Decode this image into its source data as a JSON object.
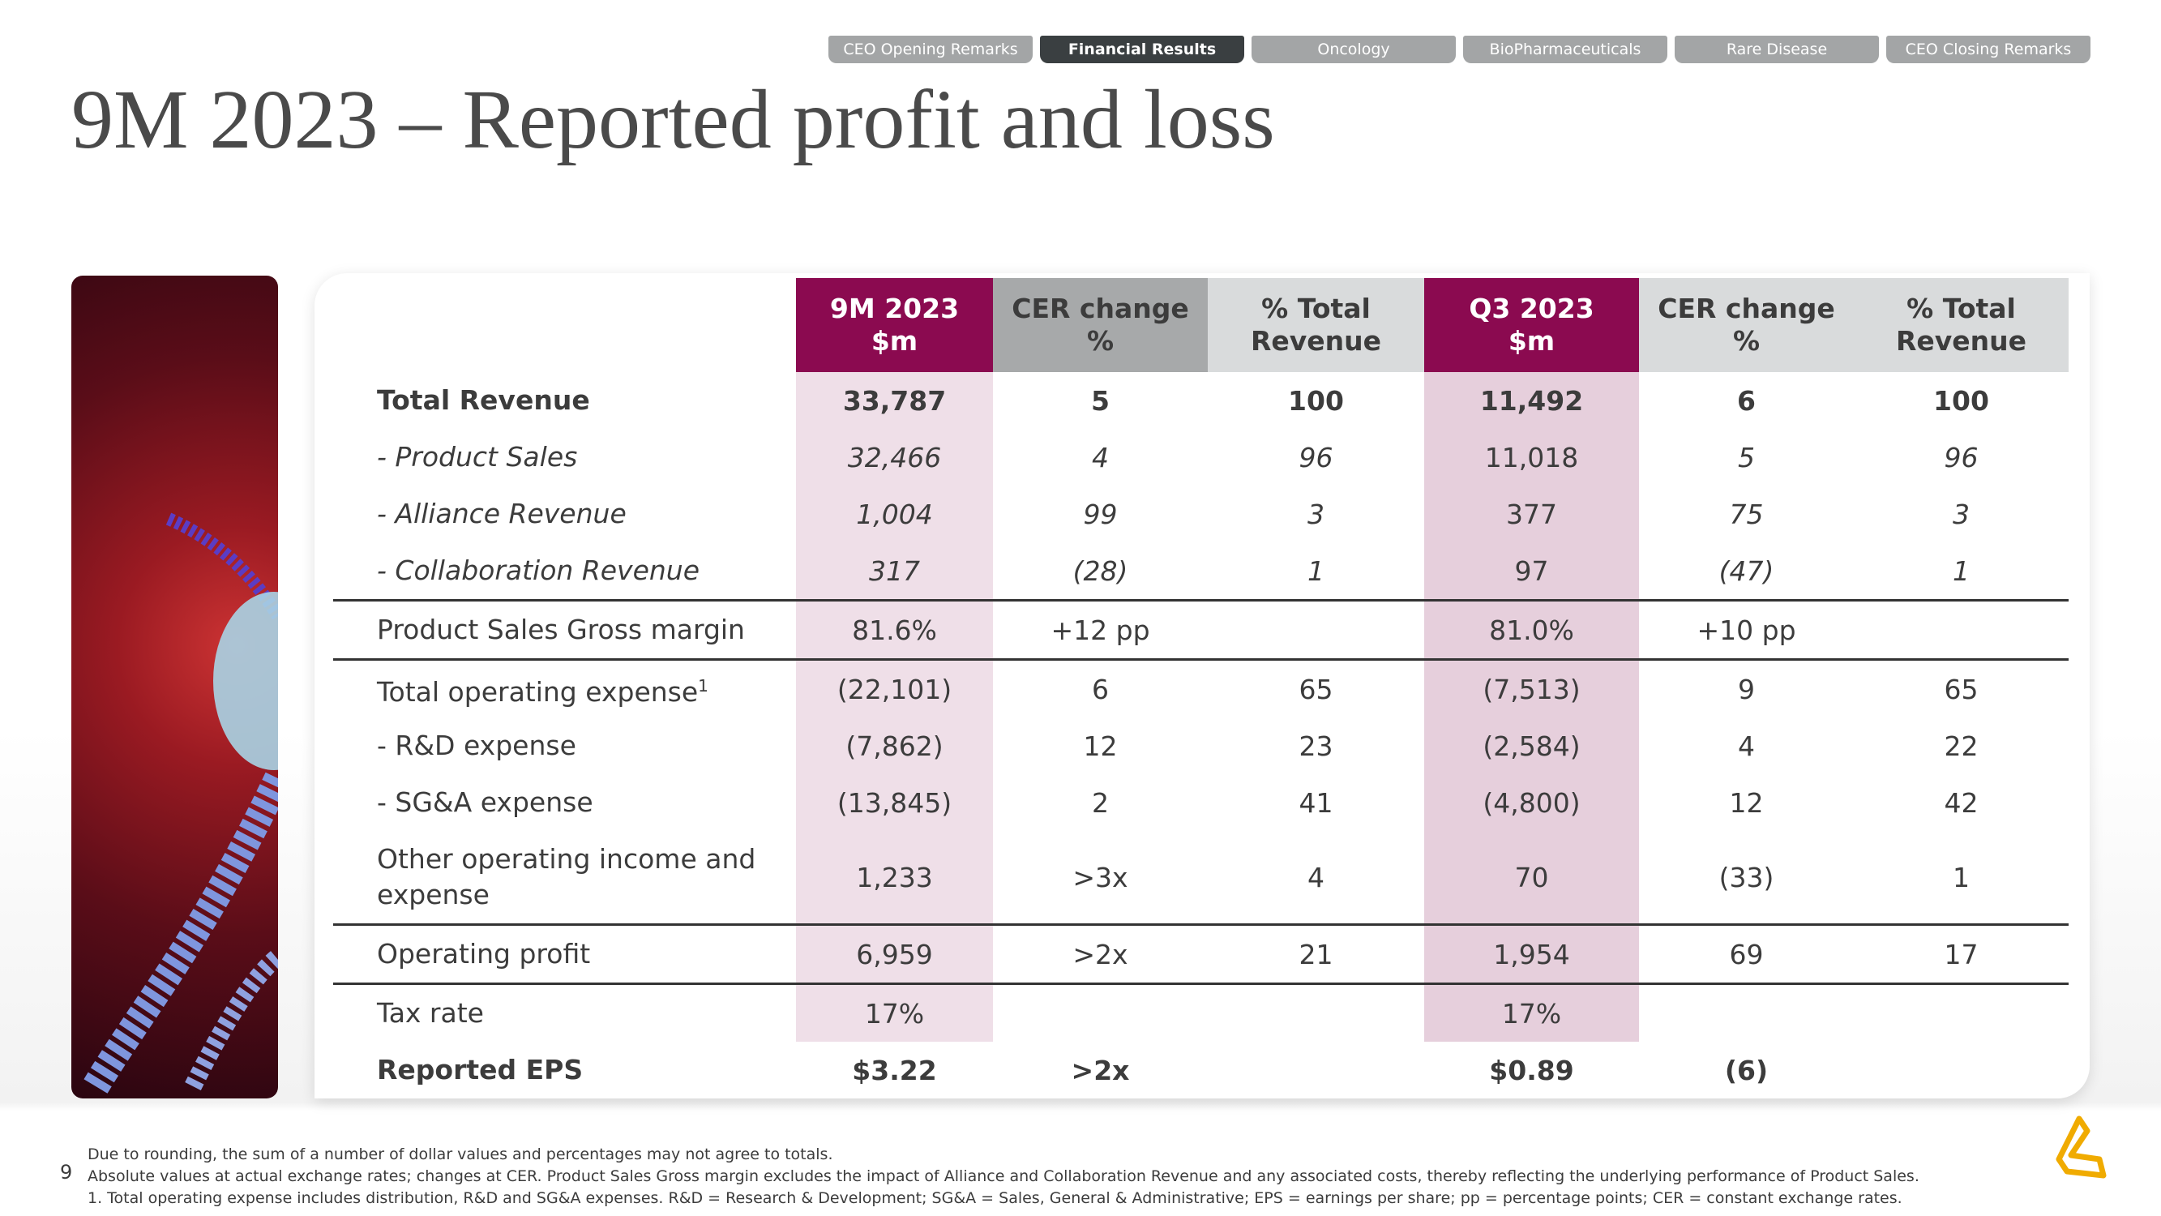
{
  "tabs": [
    "CEO Opening Remarks",
    "Financial Results",
    "Oncology",
    "BioPharmaceuticals",
    "Rare Disease",
    "CEO Closing Remarks"
  ],
  "title": "9M 2023 – Reported profit and loss",
  "table": {
    "header": [
      [
        "9M 2023",
        "$m"
      ],
      [
        "CER change",
        "%"
      ],
      [
        "% Total",
        "Revenue"
      ],
      [
        "Q3 2023",
        "$m"
      ],
      [
        "CER change",
        "%"
      ],
      [
        "% Total",
        "Revenue"
      ]
    ],
    "rows": [
      {
        "label": "Total Revenue",
        "cells": [
          "33,787",
          "5",
          "100",
          "11,492",
          "6",
          "100"
        ]
      },
      {
        "label": "- Product Sales",
        "cells": [
          "32,466",
          "4",
          "96",
          "11,018",
          "5",
          "96"
        ]
      },
      {
        "label": "- Alliance Revenue",
        "cells": [
          "1,004",
          "99",
          "3",
          "377",
          "75",
          "3"
        ]
      },
      {
        "label": "- Collaboration Revenue",
        "cells": [
          "317",
          "(28)",
          "1",
          "97",
          "(47)",
          "1"
        ]
      },
      {
        "label": "Product Sales Gross margin",
        "cells": [
          "81.6%",
          "+12 pp",
          null,
          "81.0%",
          "+10 pp",
          null
        ]
      },
      {
        "label": "Total operating expense",
        "note": "1",
        "cells": [
          "(22,101)",
          "6",
          "65",
          "(7,513)",
          "9",
          "65"
        ]
      },
      {
        "label": "- R&D expense",
        "cells": [
          "(7,862)",
          "12",
          "23",
          "(2,584)",
          "4",
          "22"
        ]
      },
      {
        "label": "- SG&A expense",
        "cells": [
          "(13,845)",
          "2",
          "41",
          "(4,800)",
          "12",
          "42"
        ]
      },
      {
        "label": "Other operating income and expense",
        "cells": [
          "1,233",
          ">3x",
          "4",
          "70",
          "(33)",
          "1"
        ]
      },
      {
        "label": "Operating profit",
        "cells": [
          "6,959",
          ">2x",
          "21",
          "1,954",
          "69",
          "17"
        ]
      },
      {
        "label": "Tax rate",
        "cells": [
          "17%",
          null,
          null,
          "17%",
          null,
          null
        ]
      },
      {
        "label": "Reported EPS",
        "cells": [
          "$3.22",
          ">2x",
          null,
          "$0.89",
          "(6)",
          null
        ]
      }
    ]
  },
  "page_number": "9",
  "footnotes": [
    "Due to rounding, the sum of a number of dollar values and percentages may not agree to totals.",
    "Absolute values at actual exchange rates; changes at CER. Product Sales Gross margin excludes the impact of Alliance and Collaboration Revenue and any associated costs, thereby reflecting the underlying performance of Product Sales.",
    "1. Total operating expense includes distribution, R&D and SG&A expenses. R&D = Research & Development; SG&A = Sales, General & Administrative; EPS = earnings per share; pp = percentage points; CER = constant exchange rates."
  ]
}
